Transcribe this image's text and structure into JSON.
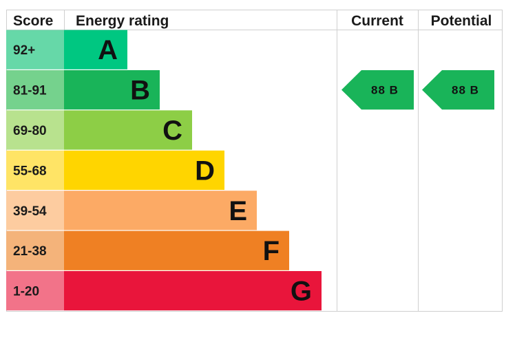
{
  "headers": {
    "score": "Score",
    "rating": "Energy rating",
    "current": "Current",
    "potential": "Potential"
  },
  "chart_data": {
    "type": "bar",
    "title": "",
    "categories": [
      "A",
      "B",
      "C",
      "D",
      "E",
      "F",
      "G"
    ],
    "score_ranges": [
      "92+",
      "81-91",
      "69-80",
      "55-68",
      "39-54",
      "21-38",
      "1-20"
    ],
    "values": [
      1,
      2,
      3,
      4,
      5,
      6,
      7
    ],
    "colors": [
      "#00c781",
      "#19b459",
      "#8dce46",
      "#ffd500",
      "#fcaa65",
      "#ef8023",
      "#e9153b"
    ],
    "score_colors": [
      "#66d8a8",
      "#75d28d",
      "#b8e28e",
      "#ffe466",
      "#fdcca0",
      "#f4b37a",
      "#f27389"
    ],
    "current": {
      "score": 88,
      "band": "B",
      "text": "88  B",
      "color": "#19b459"
    },
    "potential": {
      "score": 88,
      "band": "B",
      "text": "88  B",
      "color": "#19b459"
    }
  }
}
